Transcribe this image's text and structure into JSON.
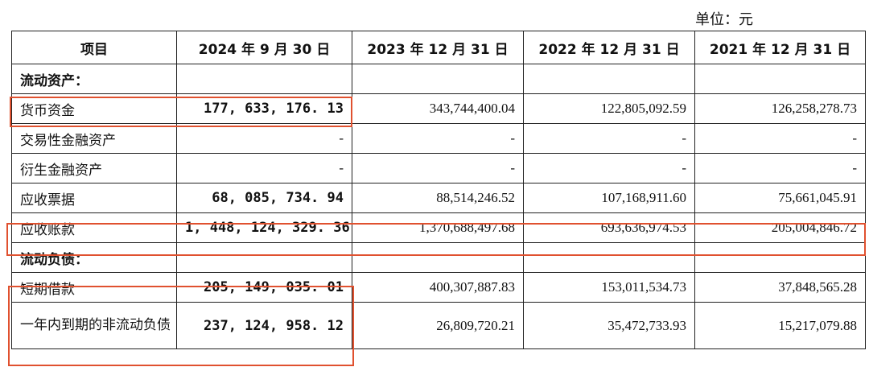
{
  "unit_label": "单位：元",
  "table": {
    "headers": [
      "项目",
      "2024 年 9 月 30 日",
      "2023 年 12 月 31 日",
      "2022 年 12 月 31 日",
      "2021 年 12 月 31 日"
    ],
    "rows": [
      {
        "label": "流动资产：",
        "section": true,
        "values": [
          "",
          "",
          "",
          ""
        ]
      },
      {
        "label": "货币资金",
        "values": [
          "177, 633, 176. 13",
          "343,744,400.04",
          "122,805,092.59",
          "126,258,278.73"
        ]
      },
      {
        "label": "交易性金融资产",
        "values": [
          "-",
          "-",
          "-",
          "-"
        ]
      },
      {
        "label": "衍生金融资产",
        "values": [
          "-",
          "-",
          "-",
          "-"
        ]
      },
      {
        "label": "应收票据",
        "values": [
          "68, 085, 734. 94",
          "88,514,246.52",
          "107,168,911.60",
          "75,661,045.91"
        ]
      },
      {
        "label": "应收账款",
        "values": [
          "1, 448, 124, 329. 36",
          "1,370,688,497.68",
          "693,636,974.53",
          "205,004,846.72"
        ]
      },
      {
        "label": "流动负债：",
        "section": true,
        "values": [
          "",
          "",
          "",
          ""
        ]
      },
      {
        "label": "短期借款",
        "values": [
          "205, 149, 035. 01",
          "400,307,887.83",
          "153,011,534.73",
          "37,848,565.28"
        ]
      },
      {
        "label": "一年内到期的非流动负债",
        "values": [
          "237, 124, 958. 12",
          "26,809,720.21",
          "35,472,733.93",
          "15,217,079.88"
        ]
      }
    ]
  },
  "highlight_color": "#e0512f"
}
